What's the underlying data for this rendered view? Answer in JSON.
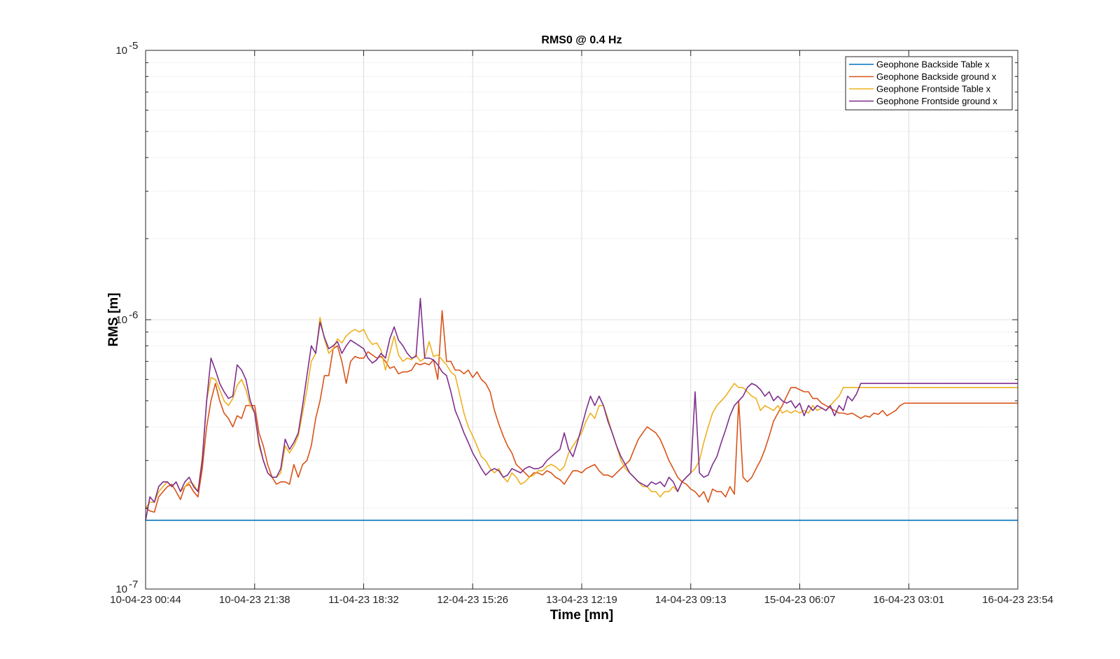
{
  "chart_data": {
    "type": "line",
    "title": "RMS0 @ 0.4 Hz",
    "xlabel": "Time [mn]",
    "ylabel": "RMS [m]",
    "yscale": "log",
    "ylim": [
      1e-07,
      1e-05
    ],
    "x_tick_labels": [
      "10-04-23 00:44",
      "10-04-23 21:38",
      "11-04-23 18:32",
      "12-04-23 15:26",
      "13-04-23 12:19",
      "14-04-23 09:13",
      "15-04-23 06:07",
      "16-04-23 03:01",
      "16-04-23 23:54"
    ],
    "y_tick_labels": [
      {
        "base": "10",
        "exp": "-7",
        "value": 1e-07
      },
      {
        "base": "10",
        "exp": "-6",
        "value": 1e-06
      },
      {
        "base": "10",
        "exp": "-5",
        "value": 1e-05
      }
    ],
    "grid": true,
    "legend_position": "top-right",
    "x_span_days": 7,
    "x_sample_step_days": 0.035,
    "series": [
      {
        "name": "Geophone Backside Table x",
        "color": "#0072BD",
        "unit": "1e-7 m",
        "values": [
          1.8,
          1.8,
          1.8,
          1.8,
          1.8,
          1.8,
          1.8,
          1.8,
          1.8,
          1.8,
          1.8,
          1.8,
          1.8,
          1.8,
          1.8,
          1.8,
          1.8,
          1.8,
          1.8,
          1.8,
          1.8,
          1.8,
          1.8,
          1.8,
          1.8,
          1.8,
          1.8,
          1.8,
          1.8,
          1.8,
          1.8,
          1.8,
          1.8,
          1.8,
          1.8,
          1.8,
          1.8,
          1.8,
          1.8,
          1.8,
          1.8,
          1.8,
          1.8,
          1.8,
          1.8,
          1.8,
          1.8,
          1.8,
          1.8,
          1.8,
          1.8,
          1.8,
          1.8,
          1.8,
          1.8,
          1.8,
          1.8,
          1.8,
          1.8,
          1.8,
          1.8,
          1.8,
          1.8,
          1.8,
          1.8,
          1.8,
          1.8,
          1.8,
          1.8,
          1.8,
          1.8,
          1.8,
          1.8,
          1.8,
          1.8,
          1.8,
          1.8,
          1.8,
          1.8,
          1.8,
          1.8,
          1.8,
          1.8,
          1.8,
          1.8,
          1.8,
          1.8,
          1.8,
          1.8,
          1.8,
          1.8,
          1.8,
          1.8,
          1.8,
          1.8,
          1.8,
          1.8,
          1.8,
          1.8,
          1.8,
          1.8,
          1.8,
          1.8,
          1.8,
          1.8,
          1.8,
          1.8,
          1.8,
          1.8,
          1.8,
          1.8,
          1.8,
          1.8,
          1.8,
          1.8,
          1.8,
          1.8,
          1.8,
          1.8,
          1.8,
          1.8,
          1.8,
          1.8,
          1.8,
          1.8,
          1.8,
          1.8,
          1.8,
          1.8,
          1.8,
          1.8,
          1.8,
          1.8,
          1.8,
          1.8,
          1.8,
          1.8,
          1.8,
          1.8,
          1.8,
          1.8,
          1.8,
          1.8,
          1.8,
          1.8,
          1.8,
          1.8,
          1.8,
          1.8,
          1.8,
          1.8,
          1.8,
          1.8,
          1.8,
          1.8,
          1.8,
          1.8,
          1.8,
          1.8,
          1.8,
          1.8,
          1.8,
          1.8,
          1.8,
          1.8,
          1.8,
          1.8,
          1.8,
          1.8,
          1.8,
          1.8,
          1.8,
          1.8,
          1.8,
          1.8,
          1.8,
          1.8,
          1.8,
          1.8,
          1.8,
          1.8,
          1.8,
          1.8,
          1.8,
          1.8,
          1.8,
          1.8,
          1.8,
          1.8,
          1.8,
          1.8,
          1.8,
          1.8,
          1.8,
          1.8,
          1.8,
          1.8,
          1.8,
          1.8,
          1.8,
          1.8,
          1.8,
          1.8,
          1.8,
          1.8,
          1.8
        ]
      },
      {
        "name": "Geophone Backside ground x",
        "color": "#D95319",
        "unit": "1e-7 m",
        "values": [
          2.0,
          1.95,
          1.93,
          2.2,
          2.3,
          2.4,
          2.45,
          2.3,
          2.15,
          2.4,
          2.45,
          2.3,
          2.2,
          2.8,
          4.0,
          5.0,
          5.8,
          5.0,
          4.5,
          4.3,
          4.0,
          4.4,
          4.3,
          4.8,
          4.8,
          4.8,
          3.8,
          3.4,
          2.9,
          2.6,
          2.45,
          2.5,
          2.5,
          2.45,
          2.9,
          2.6,
          2.9,
          3.0,
          3.4,
          4.3,
          5.0,
          6.2,
          6.2,
          7.8,
          8.0,
          7.0,
          5.8,
          7.0,
          7.3,
          7.2,
          7.2,
          7.6,
          7.4,
          7.2,
          7.3,
          7.0,
          6.6,
          6.7,
          6.3,
          6.4,
          6.4,
          6.5,
          6.9,
          6.8,
          6.9,
          6.8,
          7.1,
          6.0,
          10.8,
          7.0,
          7.0,
          6.5,
          6.5,
          6.3,
          6.5,
          6.1,
          6.4,
          6.0,
          5.8,
          5.4,
          4.6,
          4.1,
          3.7,
          3.4,
          3.2,
          2.9,
          2.8,
          2.7,
          2.6,
          2.7,
          2.7,
          2.65,
          2.75,
          2.7,
          2.6,
          2.55,
          2.45,
          2.6,
          2.75,
          2.75,
          2.7,
          2.8,
          2.85,
          2.9,
          2.75,
          2.65,
          2.65,
          2.6,
          2.7,
          2.8,
          2.9,
          3.0,
          3.3,
          3.6,
          3.8,
          4.0,
          3.9,
          3.8,
          3.6,
          3.3,
          3.0,
          2.8,
          2.6,
          2.5,
          2.45,
          2.35,
          2.3,
          2.2,
          2.3,
          2.1,
          2.35,
          2.3,
          2.3,
          2.2,
          2.4,
          2.25,
          5.0,
          2.6,
          2.5,
          2.6,
          2.8,
          3.0,
          3.3,
          3.7,
          4.2,
          4.5,
          4.8,
          5.2,
          5.6,
          5.6,
          5.5,
          5.4,
          5.4,
          5.1,
          5.1,
          4.9,
          4.8,
          4.7,
          4.6,
          4.5,
          4.5,
          4.45,
          4.5,
          4.4,
          4.3,
          4.4,
          4.35,
          4.5,
          4.45,
          4.6,
          4.4,
          4.5,
          4.6,
          4.8,
          4.9,
          4.9,
          4.9,
          4.9,
          4.9,
          4.9,
          4.9,
          4.9,
          4.9,
          4.9,
          4.9,
          4.9,
          4.9,
          4.9,
          4.9,
          4.9,
          4.9,
          4.9,
          4.9,
          4.9,
          4.9,
          4.9,
          4.9,
          4.9,
          4.9,
          4.9,
          4.9,
          4.9,
          4.9,
          4.9,
          4.9,
          4.9
        ]
      },
      {
        "name": "Geophone Frontside Table x",
        "color": "#EDB120",
        "unit": "1e-7 m",
        "values": [
          2.0,
          2.1,
          2.1,
          2.3,
          2.4,
          2.5,
          2.4,
          2.5,
          2.3,
          2.4,
          2.5,
          2.45,
          2.3,
          3.1,
          5.0,
          6.1,
          6.0,
          5.5,
          5.0,
          4.8,
          5.1,
          5.7,
          6.0,
          5.5,
          4.8,
          4.5,
          3.4,
          3.0,
          2.7,
          2.6,
          2.6,
          2.7,
          3.4,
          3.2,
          3.4,
          3.7,
          4.5,
          5.5,
          7.0,
          7.5,
          10.2,
          8.5,
          7.5,
          7.8,
          8.5,
          8.2,
          8.7,
          9.0,
          9.2,
          9.0,
          9.2,
          8.5,
          8.1,
          8.2,
          7.7,
          6.5,
          7.5,
          8.7,
          7.4,
          7.0,
          7.2,
          7.1,
          7.4,
          7.0,
          7.2,
          8.3,
          7.3,
          7.4,
          7.1,
          6.8,
          6.4,
          6.2,
          5.3,
          4.5,
          4.0,
          3.7,
          3.4,
          3.1,
          3.0,
          2.8,
          2.7,
          2.8,
          2.6,
          2.5,
          2.7,
          2.6,
          2.45,
          2.5,
          2.6,
          2.65,
          2.75,
          2.75,
          2.85,
          2.9,
          2.85,
          2.75,
          2.85,
          3.2,
          3.4,
          3.6,
          3.8,
          4.2,
          4.5,
          4.3,
          4.8,
          4.8,
          4.3,
          3.8,
          3.4,
          3.0,
          2.8,
          2.7,
          2.6,
          2.5,
          2.4,
          2.4,
          2.3,
          2.3,
          2.2,
          2.3,
          2.3,
          2.4,
          2.3,
          2.5,
          2.6,
          2.7,
          2.8,
          3.0,
          3.5,
          4.0,
          4.5,
          4.8,
          5.0,
          5.2,
          5.5,
          5.8,
          5.6,
          5.6,
          5.4,
          5.2,
          5.1,
          4.6,
          4.8,
          4.7,
          4.6,
          4.8,
          4.5,
          4.6,
          4.5,
          4.6,
          4.5,
          4.6,
          4.5,
          4.8,
          4.6,
          4.7,
          4.6,
          4.8,
          5.0,
          5.2,
          5.6,
          5.6,
          5.6,
          5.6,
          5.6,
          5.6,
          5.6,
          5.6,
          5.6,
          5.6,
          5.6,
          5.6,
          5.6,
          5.6,
          5.6,
          5.6,
          5.6,
          5.6,
          5.6,
          5.6,
          5.6,
          5.6,
          5.6,
          5.6,
          5.6,
          5.6,
          5.6,
          5.6,
          5.6,
          5.6,
          5.6,
          5.6,
          5.6,
          5.6,
          5.6,
          5.6,
          5.6,
          5.6,
          5.6,
          5.6,
          5.6,
          5.6,
          5.6
        ]
      },
      {
        "name": "Geophone Frontside ground x",
        "color": "#7E2F8E",
        "unit": "1e-7 m",
        "values": [
          1.8,
          2.2,
          2.1,
          2.4,
          2.5,
          2.5,
          2.4,
          2.5,
          2.3,
          2.5,
          2.6,
          2.4,
          2.3,
          3.0,
          5.0,
          7.2,
          6.5,
          5.8,
          5.4,
          5.1,
          5.2,
          6.8,
          6.5,
          6.0,
          5.0,
          4.5,
          3.5,
          3.0,
          2.7,
          2.6,
          2.6,
          2.8,
          3.6,
          3.3,
          3.5,
          3.8,
          4.8,
          6.2,
          8.0,
          7.5,
          9.8,
          8.6,
          7.8,
          8.0,
          8.3,
          7.5,
          8.0,
          8.4,
          8.2,
          8.0,
          7.8,
          7.2,
          6.9,
          7.1,
          7.5,
          7.2,
          8.5,
          9.4,
          8.4,
          8.0,
          7.5,
          7.2,
          7.3,
          12.0,
          7.2,
          7.2,
          7.1,
          6.8,
          6.4,
          6.2,
          5.4,
          4.6,
          4.2,
          3.8,
          3.5,
          3.2,
          3.0,
          2.8,
          2.65,
          2.75,
          2.8,
          2.75,
          2.6,
          2.65,
          2.8,
          2.75,
          2.7,
          2.8,
          2.85,
          2.8,
          2.8,
          2.85,
          3.0,
          3.1,
          3.2,
          3.3,
          3.8,
          3.3,
          3.1,
          3.5,
          4.0,
          4.6,
          5.2,
          4.8,
          5.2,
          4.8,
          4.2,
          3.8,
          3.4,
          3.1,
          2.9,
          2.7,
          2.6,
          2.5,
          2.45,
          2.4,
          2.5,
          2.45,
          2.5,
          2.4,
          2.6,
          2.5,
          2.3,
          2.5,
          2.6,
          2.7,
          5.4,
          2.7,
          2.6,
          2.65,
          2.9,
          3.1,
          3.5,
          3.9,
          4.4,
          4.8,
          5.0,
          5.2,
          5.6,
          5.8,
          5.7,
          5.5,
          5.2,
          5.4,
          5.0,
          5.2,
          5.0,
          4.9,
          5.0,
          4.7,
          4.9,
          4.4,
          4.8,
          4.6,
          4.8,
          4.7,
          4.6,
          4.8,
          4.4,
          4.8,
          4.6,
          5.2,
          5.0,
          5.3,
          5.8,
          5.8,
          5.8,
          5.8,
          5.8,
          5.8,
          5.8,
          5.8,
          5.8,
          5.8,
          5.8,
          5.8,
          5.8,
          5.8,
          5.8,
          5.8,
          5.8,
          5.8,
          5.8,
          5.8,
          5.8,
          5.8,
          5.8,
          5.8,
          5.8,
          5.8,
          5.8,
          5.8,
          5.8,
          5.8,
          5.8,
          5.8,
          5.8,
          5.8,
          5.8,
          5.8,
          5.8,
          5.8,
          5.8,
          5.8,
          5.8,
          5.8,
          5.8,
          5.8
        ]
      }
    ]
  }
}
